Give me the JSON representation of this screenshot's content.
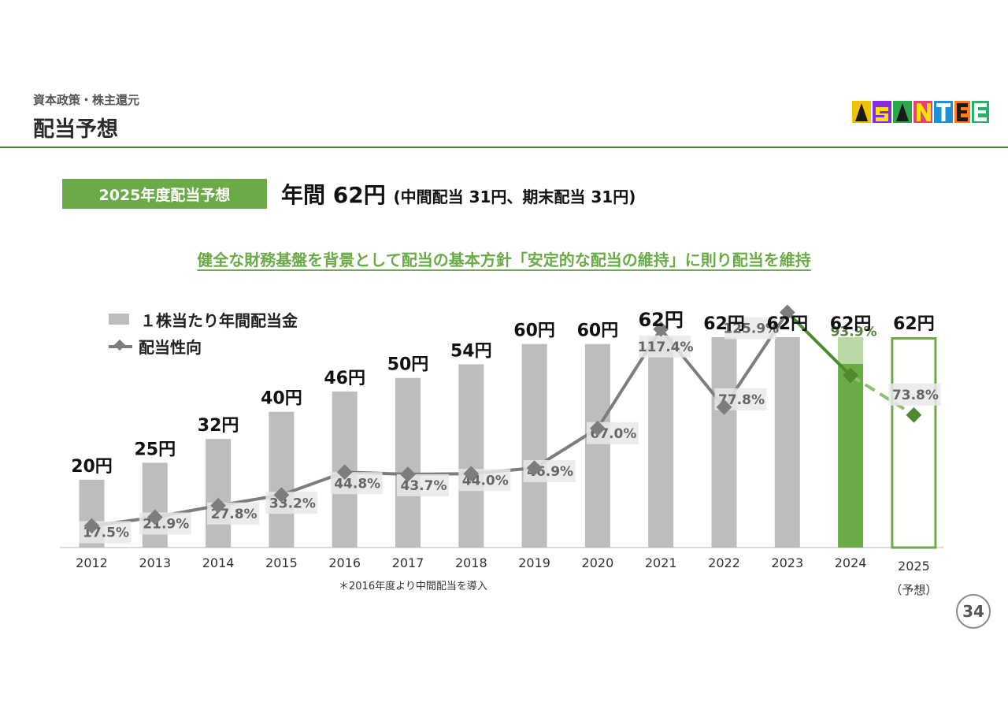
{
  "header": {
    "breadcrumb": "資本政策・株主還元",
    "title": "配当予想",
    "logo_text": "ASANTE"
  },
  "summary": {
    "badge": "2025年度配当予想",
    "annual": "年間 62円",
    "detail": "(中間配当 31円、期末配当 31円)"
  },
  "policy_text": "健全な財務基盤を背景として配当の基本方針「安定的な配当の維持」に則り配当を維持",
  "footnote": "＊2016年度より中間配当を導入",
  "page_number": "34",
  "colors": {
    "bar": "#bdbdbd",
    "bar_highlight": "#6aaa47",
    "forecast_outline": "#6aaa47",
    "line": "#7d7d7d",
    "line_highlight": "#4f8a30",
    "accent": "#6aaa47"
  },
  "chart_data": {
    "type": "bar",
    "categories": [
      "2012",
      "2013",
      "2014",
      "2015",
      "2016",
      "2017",
      "2018",
      "2019",
      "2020",
      "2021",
      "2022",
      "2023",
      "2024",
      "2025"
    ],
    "forecast_sublabel": "（予想）",
    "series": [
      {
        "name": "１株当たり年間配当金",
        "type": "bar",
        "values": [
          20,
          25,
          32,
          40,
          46,
          50,
          54,
          60,
          60,
          62,
          62,
          62,
          62,
          62
        ],
        "labels": [
          "20円",
          "25円",
          "32円",
          "40円",
          "46円",
          "50円",
          "54円",
          "60円",
          "60円",
          "62円",
          "62円",
          "62円",
          "62円",
          "62円"
        ]
      },
      {
        "name": "配当性向",
        "type": "line",
        "values": [
          17.5,
          21.9,
          27.8,
          33.2,
          44.8,
          43.7,
          44.0,
          46.9,
          67.0,
          117.4,
          77.8,
          125.9,
          93.9,
          73.8
        ],
        "labels": [
          "17.5%",
          "21.9%",
          "27.8%",
          "33.2%",
          "44.8%",
          "43.7%",
          "44.0%",
          "46.9%",
          "67.0%",
          "117.4%",
          "77.8%",
          "125.9%",
          "93.9%",
          "73.8%"
        ]
      }
    ],
    "highlight_index": 12,
    "forecast_index": 13,
    "legend_position": "top-left",
    "grid": false
  }
}
